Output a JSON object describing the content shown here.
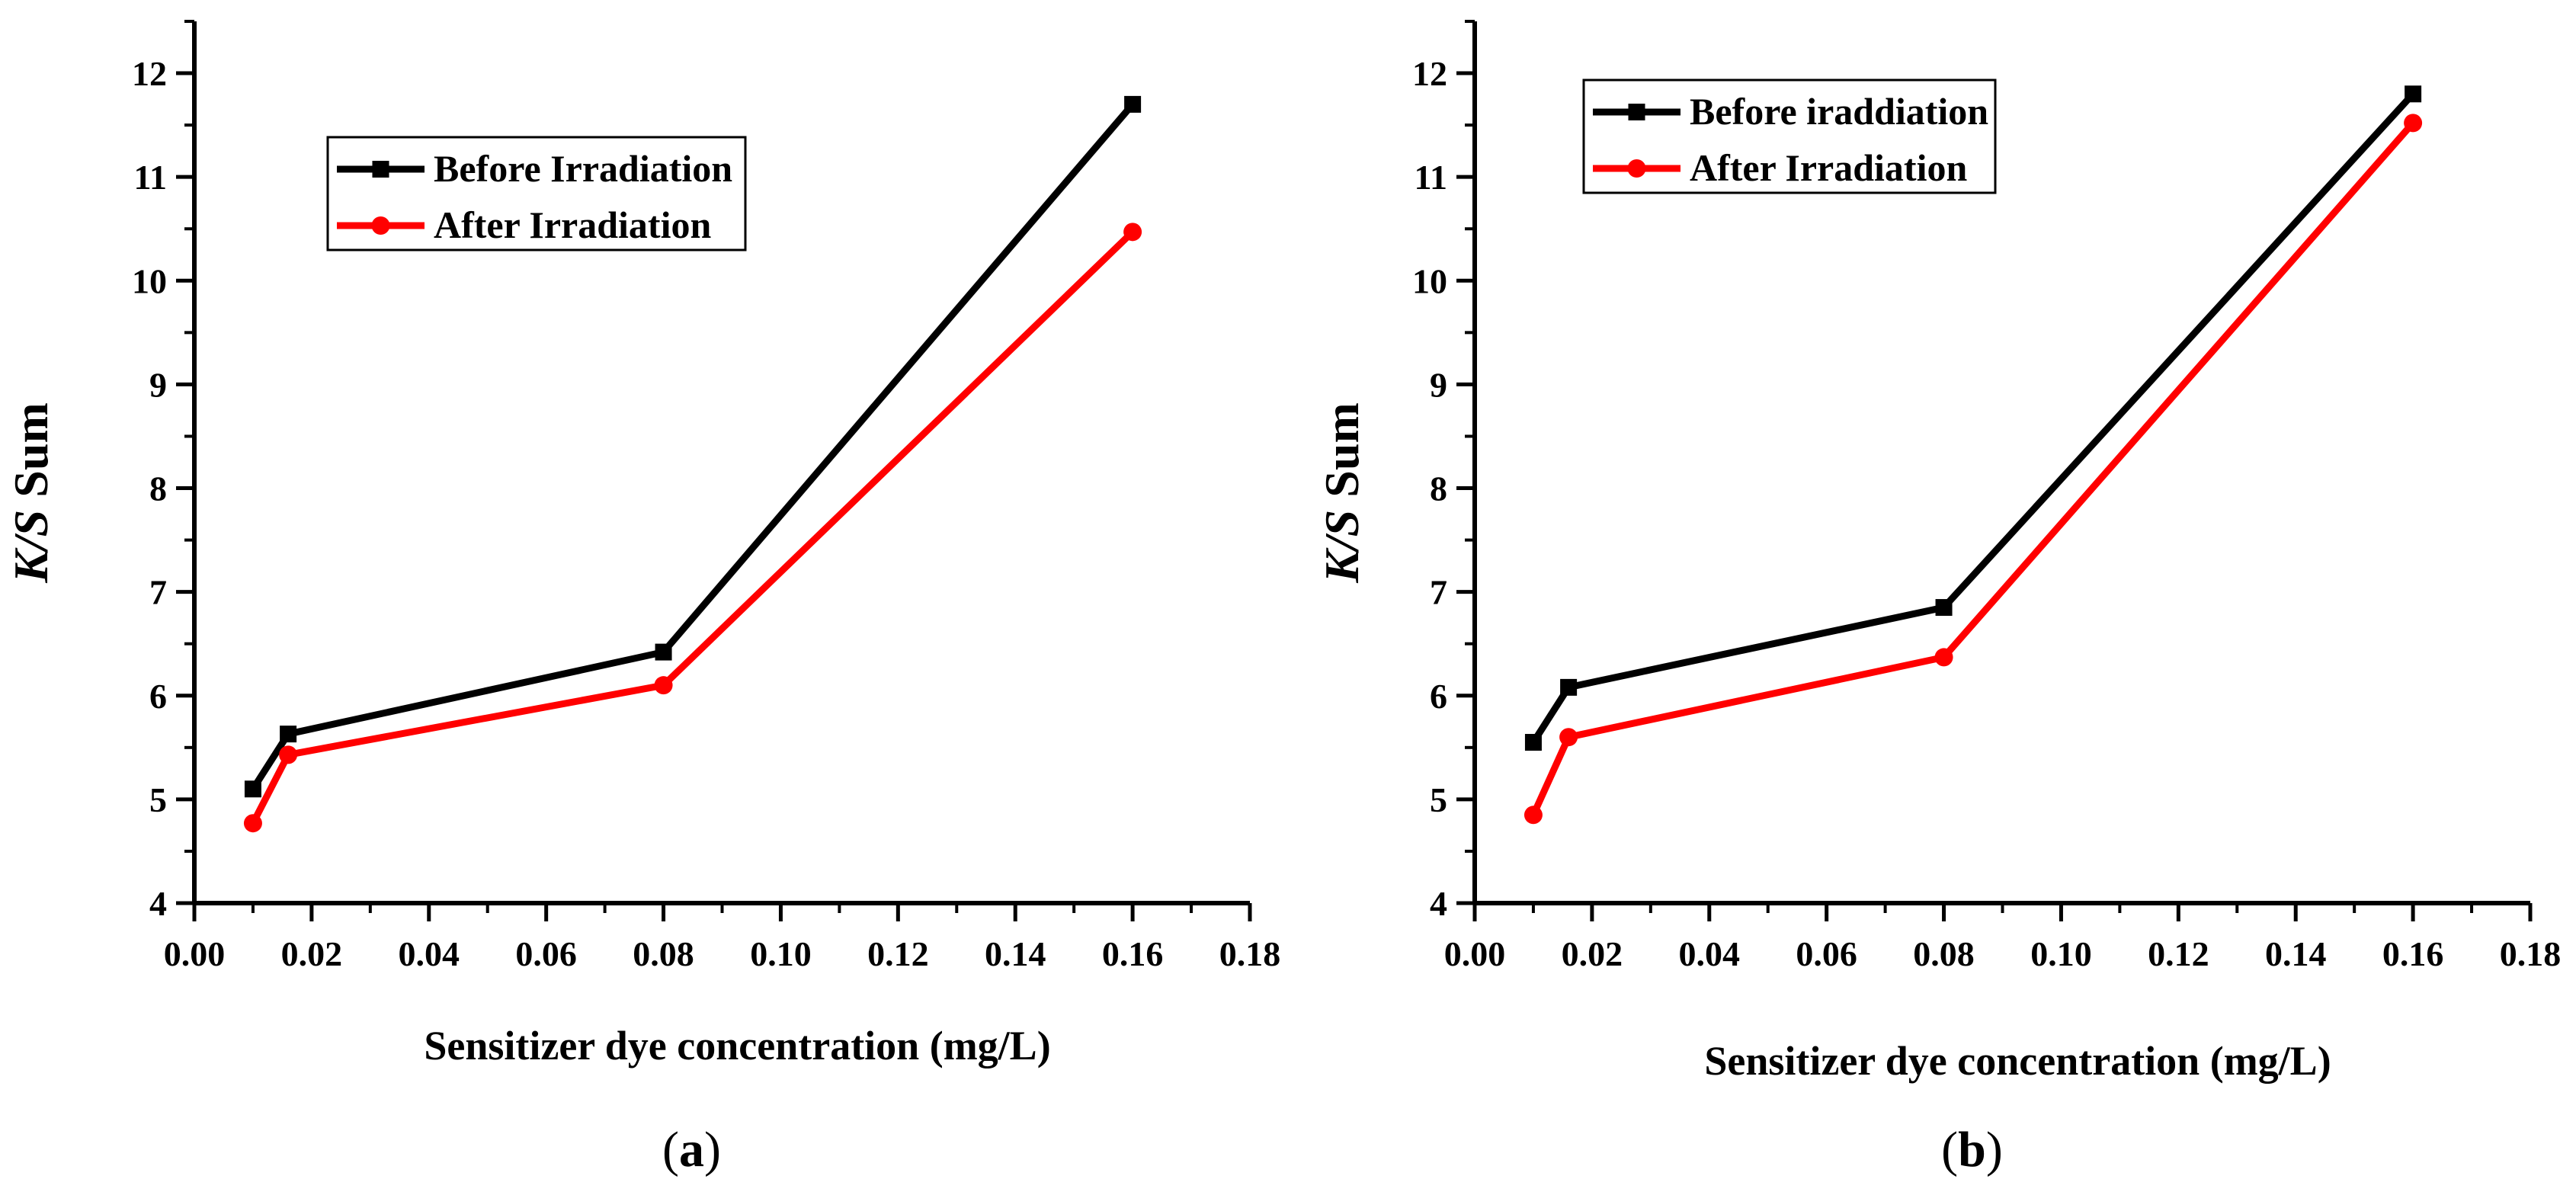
{
  "figure": {
    "panels": [
      {
        "label_open": "(",
        "label_letter": "a",
        "label_close": ")"
      },
      {
        "label_open": "(",
        "label_letter": "b",
        "label_close": ")"
      }
    ]
  },
  "chart_data": [
    {
      "type": "line",
      "title": "",
      "xlabel": "Sensitizer dye concentration (mg/L)",
      "ylabel": {
        "italic": "K/S",
        "rest": " Sum"
      },
      "xlim": [
        0.0,
        0.18
      ],
      "ylim": [
        4,
        12.5
      ],
      "xticks": [
        0.0,
        0.02,
        0.04,
        0.06,
        0.08,
        0.1,
        0.12,
        0.14,
        0.16,
        0.18
      ],
      "xtick_labels": [
        "0.00",
        "0.02",
        "0.04",
        "0.06",
        "0.08",
        "0.10",
        "0.12",
        "0.14",
        "0.16",
        "0.18"
      ],
      "yticks": [
        4,
        5,
        6,
        7,
        8,
        9,
        10,
        11,
        12
      ],
      "ytick_labels": [
        "4",
        "5",
        "6",
        "7",
        "8",
        "9",
        "10",
        "11",
        "12"
      ],
      "grid": false,
      "legend_position": "top-left",
      "series": [
        {
          "name": "Before Irradiation",
          "color": "#000000",
          "marker": "square",
          "x": [
            0.01,
            0.016,
            0.08,
            0.16
          ],
          "values": [
            5.1,
            5.63,
            6.42,
            11.7
          ]
        },
        {
          "name": "After Irradiation",
          "color": "#ff0000",
          "marker": "circle",
          "x": [
            0.01,
            0.016,
            0.08,
            0.16
          ],
          "values": [
            4.77,
            5.43,
            6.1,
            10.47
          ]
        }
      ]
    },
    {
      "type": "line",
      "title": "",
      "xlabel": "Sensitizer dye concentration (mg/L)",
      "ylabel": {
        "italic": "K/S",
        "rest": " Sum"
      },
      "xlim": [
        0.0,
        0.18
      ],
      "ylim": [
        4,
        12.5
      ],
      "xticks": [
        0.0,
        0.02,
        0.04,
        0.06,
        0.08,
        0.1,
        0.12,
        0.14,
        0.16,
        0.18
      ],
      "xtick_labels": [
        "0.00",
        "0.02",
        "0.04",
        "0.06",
        "0.08",
        "0.10",
        "0.12",
        "0.14",
        "0.16",
        "0.18"
      ],
      "yticks": [
        4,
        5,
        6,
        7,
        8,
        9,
        10,
        11,
        12
      ],
      "ytick_labels": [
        "4",
        "5",
        "6",
        "7",
        "8",
        "9",
        "10",
        "11",
        "12"
      ],
      "grid": false,
      "legend_position": "top-left",
      "series": [
        {
          "name": "Before iraddiation",
          "color": "#000000",
          "marker": "square",
          "x": [
            0.01,
            0.016,
            0.08,
            0.16
          ],
          "values": [
            5.55,
            6.08,
            6.85,
            11.8
          ]
        },
        {
          "name": "After Irradiation",
          "color": "#ff0000",
          "marker": "circle",
          "x": [
            0.01,
            0.016,
            0.08,
            0.16
          ],
          "values": [
            4.85,
            5.6,
            6.37,
            11.52
          ]
        }
      ]
    }
  ]
}
